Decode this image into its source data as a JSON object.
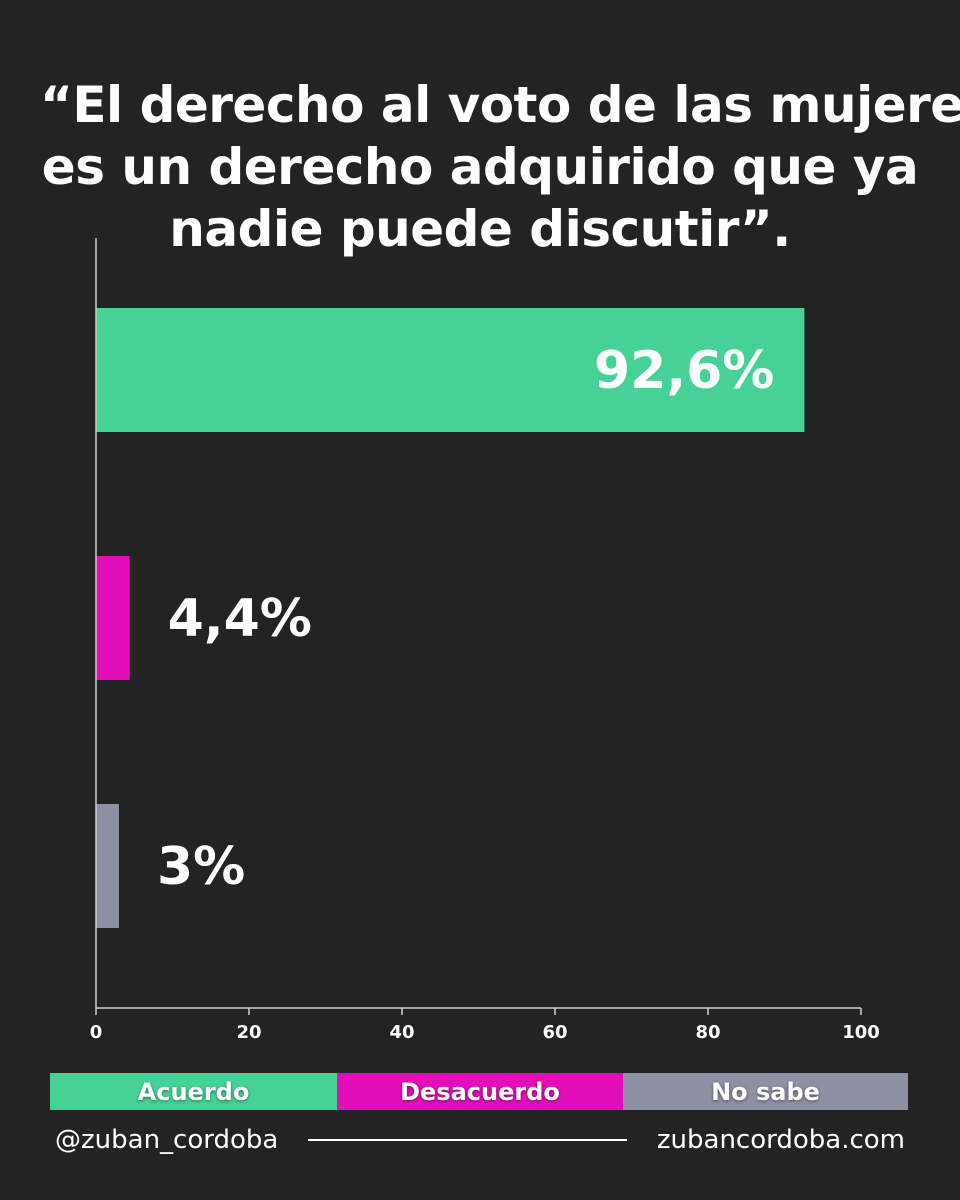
{
  "title_lines": [
    "“El derecho al voto de las mujeres",
    "es un derecho adquirido que ya",
    "nadie puede discutir”."
  ],
  "chart_data": {
    "type": "bar",
    "orientation": "horizontal",
    "categories": [
      "Acuerdo",
      "Desacuerdo",
      "No sabe"
    ],
    "values": [
      92.6,
      4.4,
      3
    ],
    "value_labels": [
      "92,6%",
      "4,4%",
      "3%"
    ],
    "colors": [
      "#46d197",
      "#e20fb8",
      "#8e91a4"
    ],
    "xlim": [
      0,
      100
    ],
    "xticks": [
      0,
      20,
      40,
      60,
      80,
      100
    ],
    "grid": false,
    "legend_position": "bottom"
  },
  "legend": [
    {
      "label": "Acuerdo",
      "color": "#46d197"
    },
    {
      "label": "Desacuerdo",
      "color": "#e20fb8"
    },
    {
      "label": "No sabe",
      "color": "#8e91a4"
    }
  ],
  "footer": {
    "handle": "@zuban_cordoba",
    "website": "zubancordoba.com"
  },
  "colors": {
    "background": "#232323",
    "text": "#ffffff",
    "axis": "#cfcfcf"
  }
}
